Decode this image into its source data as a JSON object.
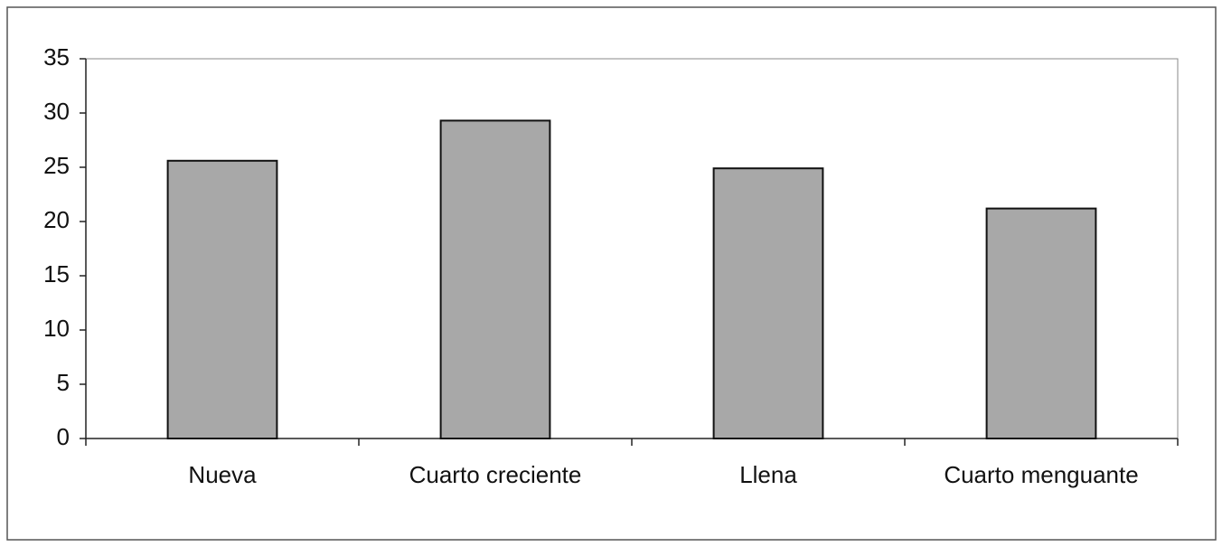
{
  "chart_data": {
    "type": "bar",
    "categories": [
      "Nueva",
      "Cuarto creciente",
      "Llena",
      "Cuarto menguante"
    ],
    "values": [
      25.6,
      29.3,
      24.9,
      21.2
    ],
    "color": "#a8a8a8",
    "ylim": [
      0,
      35
    ],
    "yticks": [
      0,
      5,
      10,
      15,
      20,
      25,
      30,
      35
    ],
    "grid": false
  }
}
